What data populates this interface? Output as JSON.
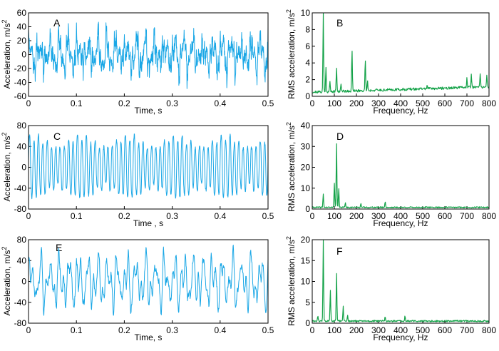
{
  "colors": {
    "time_trace": "#1aa7e6",
    "spectrum_trace": "#16a34a"
  },
  "chart_data": [
    {
      "id": "A",
      "type": "line",
      "letter": "A",
      "xlabel": "Time, s",
      "ylabel": "Acceleration, m/s",
      "ylabel_sup": "2",
      "xlim": [
        0,
        0.5
      ],
      "ylim": [
        -60,
        60
      ],
      "xticks": [
        "0",
        "0.1",
        "0.2",
        "0.3",
        "0.4",
        "0.5"
      ],
      "yticks": [
        "60",
        "40",
        "20",
        "0",
        "-20",
        "-40",
        "-60"
      ],
      "signal": {
        "components": [
          [
            50,
            14,
            0.3
          ],
          [
            62,
            8,
            1.1
          ],
          [
            110,
            9,
            2.0
          ],
          [
            180,
            8,
            0.7
          ],
          [
            240,
            7,
            1.5
          ],
          [
            700,
            4,
            0.2
          ],
          [
            730,
            4,
            1.9
          ],
          [
            760,
            4,
            0.9
          ]
        ],
        "noise": 6,
        "seed": 11,
        "samples": 1000
      }
    },
    {
      "id": "B",
      "type": "line",
      "letter": "B",
      "xlabel": "Frequency, Hz",
      "ylabel": "RMS acceleration,  m/s",
      "ylabel_sup": "2",
      "xlim": [
        0,
        800
      ],
      "ylim": [
        0,
        10
      ],
      "xticks": [
        "0",
        "100",
        "200",
        "300",
        "400",
        "500",
        "600",
        "700",
        "800"
      ],
      "yticks": [
        "10",
        "8",
        "6",
        "4",
        "2",
        "0"
      ],
      "spectrum": {
        "peaks": [
          [
            50,
            9.4
          ],
          [
            62,
            3.0
          ],
          [
            80,
            1.2
          ],
          [
            110,
            2.9
          ],
          [
            130,
            1.0
          ],
          [
            180,
            5.0
          ],
          [
            240,
            3.8
          ],
          [
            250,
            1.2
          ],
          [
            520,
            0.5
          ],
          [
            700,
            1.3
          ],
          [
            720,
            1.5
          ],
          [
            760,
            1.6
          ],
          [
            790,
            1.4
          ]
        ],
        "base": 0.35,
        "floor_slope": 0.0008,
        "noise": 0.3,
        "seed": 21,
        "samples": 400
      }
    },
    {
      "id": "C",
      "type": "line",
      "letter": "C",
      "xlabel": "Time ,  s",
      "ylabel": "Acceleration, m/s",
      "ylabel_sup": "2",
      "xlim": [
        0,
        0.5
      ],
      "ylim": [
        -80,
        80
      ],
      "xticks": [
        "0",
        "0.1",
        "0.2",
        "0.3",
        "0.4",
        "0.5"
      ],
      "yticks": [
        "80",
        "40",
        "0",
        "-40",
        "-80"
      ],
      "signal": {
        "components": [
          [
            110,
            50,
            0.0
          ],
          [
            100,
            10,
            0.6
          ],
          [
            50,
            6,
            1.2
          ],
          [
            330,
            4,
            0.4
          ]
        ],
        "noise": 3,
        "seed": 31,
        "samples": 1000
      }
    },
    {
      "id": "D",
      "type": "line",
      "letter": "D",
      "xlabel": "Frequency, Hz",
      "ylabel": "RMS acceleration,  m/s",
      "ylabel_sup": "2",
      "xlim": [
        0,
        800
      ],
      "ylim": [
        0,
        40
      ],
      "xticks": [
        "0",
        "100",
        "200",
        "300",
        "400",
        "500",
        "600",
        "700",
        "800"
      ],
      "yticks": [
        "40",
        "30",
        "20",
        "10",
        "0"
      ],
      "spectrum": {
        "peaks": [
          [
            50,
            6.5
          ],
          [
            100,
            12
          ],
          [
            110,
            31
          ],
          [
            120,
            9
          ],
          [
            150,
            2.5
          ],
          [
            220,
            2.2
          ],
          [
            330,
            3.0
          ]
        ],
        "base": 0.5,
        "floor_slope": 0,
        "noise": 0.6,
        "seed": 41,
        "samples": 400
      }
    },
    {
      "id": "E",
      "type": "line",
      "letter": "E",
      "xlabel": "Time, s",
      "ylabel": "Acceleration,  m/s",
      "ylabel_sup": "2",
      "xlim": [
        0,
        0.5
      ],
      "ylim": [
        -80,
        80
      ],
      "xticks": [
        "0",
        "0.1",
        "0.2",
        "0.3",
        "0.4",
        "0.5"
      ],
      "yticks": [
        "80",
        "40",
        "0",
        "-40",
        "-80"
      ],
      "signal": {
        "components": [
          [
            50,
            30,
            0.0
          ],
          [
            82,
            16,
            0.9
          ],
          [
            110,
            20,
            1.6
          ],
          [
            150,
            8,
            0.4
          ],
          [
            330,
            4,
            2.2
          ]
        ],
        "noise": 4,
        "seed": 51,
        "samples": 1000
      }
    },
    {
      "id": "F",
      "type": "line",
      "letter": "F",
      "xlabel": "Frequency, Hz",
      "ylabel": "RMS acceleration,  m/s",
      "ylabel_sup": "2",
      "xlim": [
        0,
        800
      ],
      "ylim": [
        0,
        20
      ],
      "xticks": [
        "0",
        "100",
        "200",
        "300",
        "400",
        "500",
        "600",
        "700",
        "800"
      ],
      "yticks": [
        "20",
        "15",
        "10",
        "5",
        "0"
      ],
      "spectrum": {
        "peaks": [
          [
            25,
            1.2
          ],
          [
            50,
            19.5
          ],
          [
            82,
            7.5
          ],
          [
            110,
            11.5
          ],
          [
            140,
            3.5
          ],
          [
            160,
            1.5
          ],
          [
            330,
            1.0
          ],
          [
            420,
            1.2
          ]
        ],
        "base": 0.3,
        "floor_slope": 0,
        "noise": 0.4,
        "seed": 61,
        "samples": 400
      }
    }
  ]
}
